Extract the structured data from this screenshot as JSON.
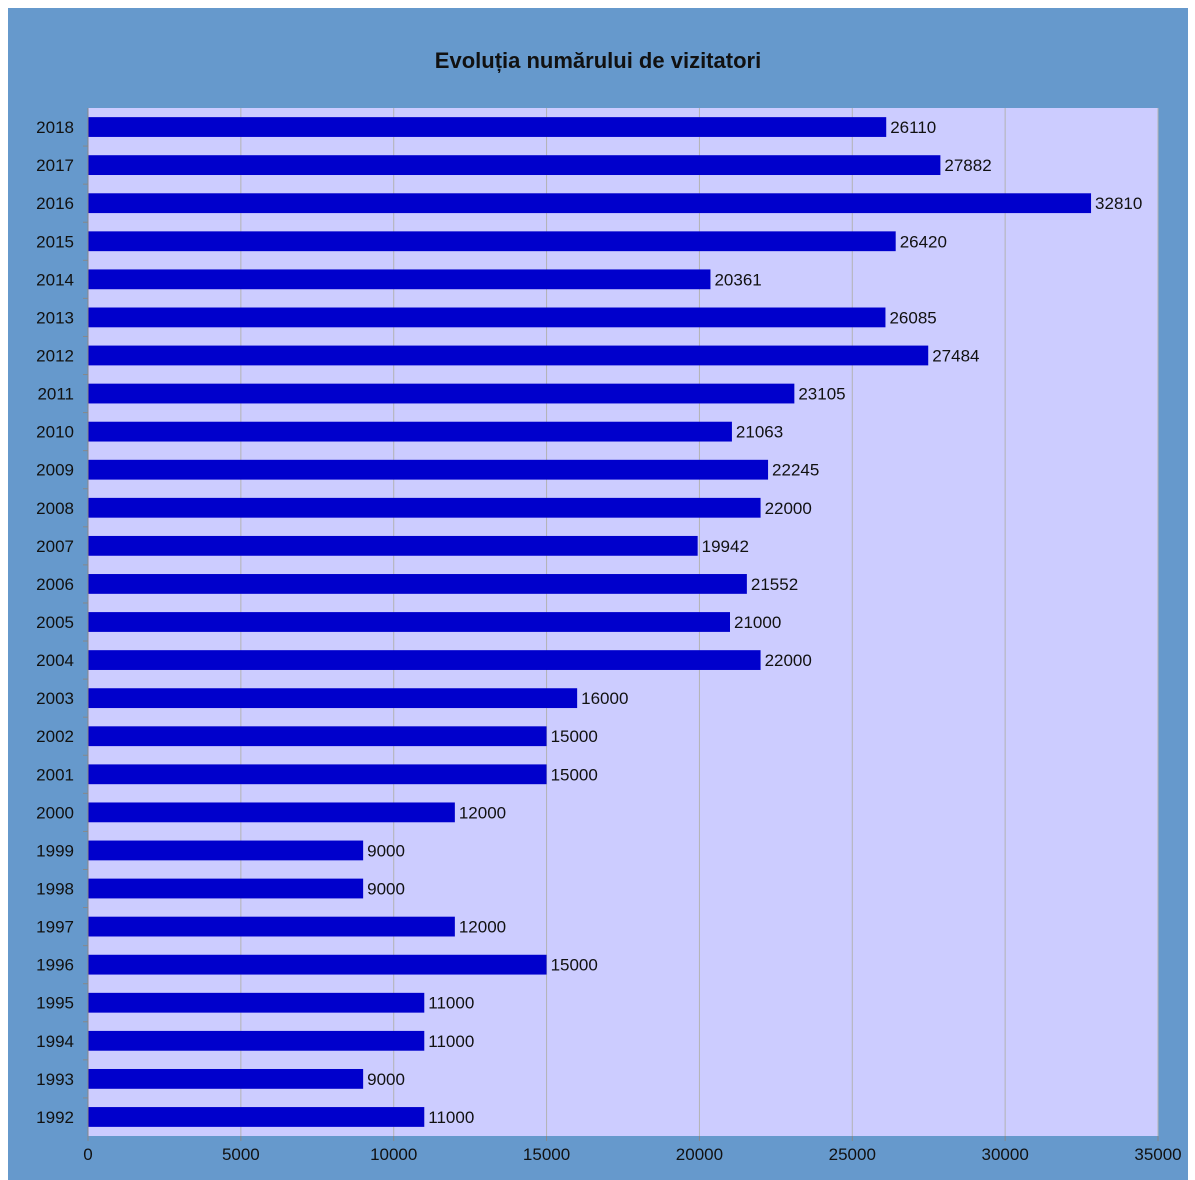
{
  "chart_data": {
    "type": "bar",
    "orientation": "horizontal",
    "title": "Evoluția numărului de vizitatori",
    "categories": [
      "2018",
      "2017",
      "2016",
      "2015",
      "2014",
      "2013",
      "2012",
      "2011",
      "2010",
      "2009",
      "2008",
      "2007",
      "2006",
      "2005",
      "2004",
      "2003",
      "2002",
      "2001",
      "2000",
      "1999",
      "1998",
      "1997",
      "1996",
      "1995",
      "1994",
      "1993",
      "1992"
    ],
    "values": [
      26110,
      27882,
      32810,
      26420,
      20361,
      26085,
      27484,
      23105,
      21063,
      22245,
      22000,
      19942,
      21552,
      21000,
      22000,
      16000,
      15000,
      15000,
      12000,
      9000,
      9000,
      12000,
      15000,
      11000,
      11000,
      9000,
      11000
    ],
    "xlim": [
      0,
      35000
    ],
    "x_ticks": [
      0,
      5000,
      10000,
      15000,
      20000,
      25000,
      30000,
      35000
    ],
    "x_tick_labels": [
      "0",
      "5000",
      "10000",
      "15000",
      "20000",
      "25000",
      "30000",
      "35000"
    ],
    "grid": "vertical",
    "data_labels": true,
    "legend": "none",
    "colors": {
      "frame": "#6699cc",
      "plot_background": "#ccccff",
      "bar": "#0000cc",
      "gridline": "#b3b3b3"
    }
  }
}
